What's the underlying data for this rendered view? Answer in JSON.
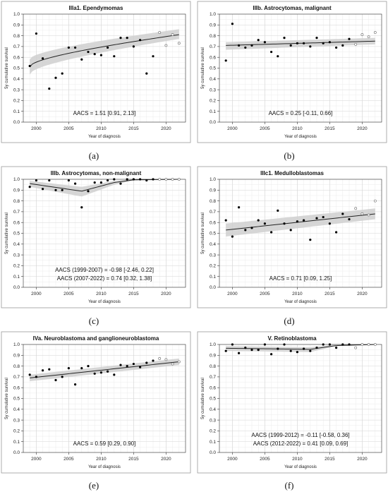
{
  "figure": {
    "panels": [
      {
        "caption": "(a)",
        "title": "IIIa1. Ependymomas",
        "xlabel": "Year of diagnosis",
        "ylabel": "5y cumulative survival",
        "annotations": [
          "AACS = 1.51 [0.91, 2.13]"
        ]
      },
      {
        "caption": "(b)",
        "title": "IIIb. Astrocytomas, malignant",
        "xlabel": "Year of diagnosis",
        "ylabel": "5y cumulative survival",
        "annotations": [
          "AACS = 0.25 [-0.11, 0.66]"
        ]
      },
      {
        "caption": "(c)",
        "title": "IIIb. Astrocytomas, non-malignant",
        "xlabel": "Year of diagnosis",
        "ylabel": "5y cumulative survival",
        "annotations": [
          "AACS (1999-2007) = -0.98 [-2.46, 0.22]",
          "AACS (2007-2022) = 0.74 [0.32, 1.38]"
        ]
      },
      {
        "caption": "(d)",
        "title": "IIIc1. Medulloblastomas",
        "xlabel": "Year of diagnosis",
        "ylabel": "5y cumulative survival",
        "annotations": [
          "AACS = 0.71 [0.09, 1.25]"
        ]
      },
      {
        "caption": "(e)",
        "title": "IVa. Neuroblastoma and ganglioneuroblastoma",
        "xlabel": "Year of diagnosis",
        "ylabel": "5y cumulative survival",
        "annotations": [
          "AACS = 0.59 [0.29, 0.90]"
        ]
      },
      {
        "caption": "(f)",
        "title": "V. Retinoblastoma",
        "xlabel": "Year of diagnosis",
        "ylabel": "5y cumulative survival",
        "annotations": [
          "AACS (1999-2012) = -0.11 [-0.58, 0.36]",
          "AACS (2012-2022) = 0.41 [0.09, 0.69]"
        ]
      }
    ]
  },
  "chart_data": [
    {
      "type": "scatter",
      "title": "IIIa1. Ependymomas",
      "xlabel": "Year of diagnosis",
      "ylabel": "5y cumulative survival",
      "xlim": [
        1998,
        2023
      ],
      "ylim": [
        0,
        1
      ],
      "xticks": [
        2000,
        2005,
        2010,
        2015,
        2020
      ],
      "yticks": [
        0.0,
        0.1,
        0.2,
        0.3,
        0.4,
        0.5,
        0.6,
        0.7,
        0.8,
        0.9,
        1.0
      ],
      "grid": true,
      "series": [
        {
          "marker": "filled",
          "x": [
            1999,
            2000,
            2001,
            2002,
            2003,
            2004,
            2005,
            2006,
            2007,
            2008,
            2009,
            2010,
            2011,
            2012,
            2013,
            2014,
            2015,
            2016,
            2017,
            2018
          ],
          "y": [
            0.52,
            0.82,
            0.59,
            0.31,
            0.41,
            0.45,
            0.69,
            0.69,
            0.58,
            0.65,
            0.63,
            0.62,
            0.69,
            0.61,
            0.78,
            0.78,
            0.7,
            0.76,
            0.45,
            0.61
          ]
        },
        {
          "marker": "open",
          "x": [
            2019,
            2020,
            2021,
            2022
          ],
          "y": [
            0.83,
            0.71,
            0.81,
            0.73
          ]
        }
      ],
      "trend": {
        "x": [
          1999,
          2022
        ],
        "y": [
          0.51,
          0.81
        ],
        "shape": "curved"
      },
      "ci": {
        "lower": [
          0.44,
          0.77
        ],
        "upper": [
          0.58,
          0.86
        ]
      },
      "annotations": [
        "AACS = 1.51 [0.91, 2.13]"
      ]
    },
    {
      "type": "scatter",
      "title": "IIIb. Astrocytomas, malignant",
      "xlabel": "Year of diagnosis",
      "ylabel": "5y cumulative survival",
      "xlim": [
        1998,
        2023
      ],
      "ylim": [
        0,
        1
      ],
      "xticks": [
        2000,
        2005,
        2010,
        2015,
        2020
      ],
      "yticks": [
        0.0,
        0.1,
        0.2,
        0.3,
        0.4,
        0.5,
        0.6,
        0.7,
        0.8,
        0.9,
        1.0
      ],
      "grid": true,
      "series": [
        {
          "marker": "filled",
          "x": [
            1999,
            2000,
            2001,
            2002,
            2003,
            2004,
            2005,
            2006,
            2007,
            2008,
            2009,
            2010,
            2011,
            2012,
            2013,
            2014,
            2015,
            2016,
            2017,
            2018
          ],
          "y": [
            0.57,
            0.91,
            0.71,
            0.69,
            0.71,
            0.76,
            0.74,
            0.65,
            0.61,
            0.78,
            0.71,
            0.73,
            0.73,
            0.7,
            0.78,
            0.73,
            0.74,
            0.69,
            0.71,
            0.77
          ]
        },
        {
          "marker": "open",
          "x": [
            2019,
            2020,
            2021,
            2022
          ],
          "y": [
            0.72,
            0.81,
            0.79,
            0.83
          ]
        }
      ],
      "trend": {
        "x": [
          1999,
          2022
        ],
        "y": [
          0.71,
          0.75
        ]
      },
      "ci": {
        "lower": [
          0.67,
          0.72
        ],
        "upper": [
          0.74,
          0.78
        ]
      },
      "annotations": [
        "AACS = 0.25 [-0.11, 0.66]"
      ]
    },
    {
      "type": "scatter",
      "title": "IIIb. Astrocytomas, non-malignant",
      "xlabel": "Year of diagnosis",
      "ylabel": "5y cumulative survival",
      "xlim": [
        1998,
        2023
      ],
      "ylim": [
        0,
        1
      ],
      "xticks": [
        2000,
        2005,
        2010,
        2015,
        2020
      ],
      "yticks": [
        0.0,
        0.1,
        0.2,
        0.3,
        0.4,
        0.5,
        0.6,
        0.7,
        0.8,
        0.9,
        1.0
      ],
      "grid": true,
      "series": [
        {
          "marker": "filled",
          "x": [
            1999,
            2000,
            2001,
            2002,
            2003,
            2004,
            2005,
            2006,
            2007,
            2008,
            2009,
            2010,
            2011,
            2012,
            2013,
            2014,
            2015,
            2016,
            2017,
            2018
          ],
          "y": [
            0.93,
            0.99,
            0.91,
            0.99,
            0.9,
            0.9,
            0.99,
            0.96,
            0.74,
            0.89,
            0.97,
            0.97,
            0.99,
            1.0,
            0.96,
            1.0,
            1.0,
            1.0,
            0.99,
            1.0
          ]
        },
        {
          "marker": "open",
          "x": [
            2019,
            2020,
            2021,
            2022
          ],
          "y": [
            1.0,
            1.0,
            1.0,
            1.0
          ]
        }
      ],
      "trend": {
        "x": [
          1999,
          2007,
          2012,
          2015,
          2022
        ],
        "y": [
          0.96,
          0.89,
          0.97,
          0.995,
          1.0
        ]
      },
      "ci": {
        "lower": [
          0.93,
          0.84,
          0.95,
          0.99,
          0.995
        ],
        "upper": [
          0.985,
          0.93,
          0.985,
          1.0,
          1.0
        ]
      },
      "annotations": [
        "AACS (1999-2007) = -0.98 [-2.46, 0.22]",
        "AACS (2007-2022) = 0.74 [0.32, 1.38]"
      ]
    },
    {
      "type": "scatter",
      "title": "IIIc1. Medulloblastomas",
      "xlabel": "Year of diagnosis",
      "ylabel": "5y cumulative survival",
      "xlim": [
        1998,
        2023
      ],
      "ylim": [
        0,
        1
      ],
      "xticks": [
        2000,
        2005,
        2010,
        2015,
        2020
      ],
      "yticks": [
        0.0,
        0.1,
        0.2,
        0.3,
        0.4,
        0.5,
        0.6,
        0.7,
        0.8,
        0.9,
        1.0
      ],
      "grid": true,
      "series": [
        {
          "marker": "filled",
          "x": [
            1999,
            2000,
            2001,
            2002,
            2003,
            2004,
            2005,
            2006,
            2007,
            2008,
            2009,
            2010,
            2011,
            2012,
            2013,
            2014,
            2015,
            2016,
            2017,
            2018
          ],
          "y": [
            0.62,
            0.47,
            0.74,
            0.53,
            0.55,
            0.62,
            0.59,
            0.51,
            0.71,
            0.59,
            0.53,
            0.61,
            0.62,
            0.44,
            0.64,
            0.65,
            0.59,
            0.51,
            0.68,
            0.63
          ]
        },
        {
          "marker": "open",
          "x": [
            2019,
            2020,
            2021,
            2022
          ],
          "y": [
            0.73,
            0.68,
            0.67,
            0.8
          ]
        }
      ],
      "trend": {
        "x": [
          1999,
          2022
        ],
        "y": [
          0.53,
          0.68
        ]
      },
      "ci": {
        "lower": [
          0.47,
          0.63
        ],
        "upper": [
          0.59,
          0.73
        ]
      },
      "annotations": [
        "AACS = 0.71 [0.09, 1.25]"
      ]
    },
    {
      "type": "scatter",
      "title": "IVa. Neuroblastoma and ganglioneuroblastoma",
      "xlabel": "Year of diagnosis",
      "ylabel": "5y cumulative survival",
      "xlim": [
        1998,
        2023
      ],
      "ylim": [
        0,
        1
      ],
      "xticks": [
        2000,
        2005,
        2010,
        2015,
        2020
      ],
      "yticks": [
        0.0,
        0.1,
        0.2,
        0.3,
        0.4,
        0.5,
        0.6,
        0.7,
        0.8,
        0.9,
        1.0
      ],
      "grid": true,
      "series": [
        {
          "marker": "filled",
          "x": [
            1999,
            2000,
            2001,
            2002,
            2003,
            2004,
            2005,
            2006,
            2007,
            2008,
            2009,
            2010,
            2011,
            2012,
            2013,
            2014,
            2015,
            2016,
            2017,
            2018
          ],
          "y": [
            0.72,
            0.7,
            0.76,
            0.77,
            0.67,
            0.7,
            0.78,
            0.63,
            0.78,
            0.8,
            0.73,
            0.74,
            0.75,
            0.72,
            0.81,
            0.8,
            0.82,
            0.79,
            0.83,
            0.85
          ]
        },
        {
          "marker": "open",
          "x": [
            2019,
            2020,
            2021,
            2022
          ],
          "y": [
            0.87,
            0.86,
            0.82,
            0.84
          ]
        }
      ],
      "trend": {
        "x": [
          1999,
          2022
        ],
        "y": [
          0.69,
          0.84
        ]
      },
      "ci": {
        "lower": [
          0.66,
          0.81
        ],
        "upper": [
          0.72,
          0.87
        ]
      },
      "annotations": [
        "AACS = 0.59 [0.29, 0.90]"
      ]
    },
    {
      "type": "scatter",
      "title": "V. Retinoblastoma",
      "xlabel": "Year of diagnosis",
      "ylabel": "5y cumulative survival",
      "xlim": [
        1998,
        2023
      ],
      "ylim": [
        0,
        1
      ],
      "xticks": [
        2000,
        2005,
        2010,
        2015,
        2020
      ],
      "yticks": [
        0.0,
        0.1,
        0.2,
        0.3,
        0.4,
        0.5,
        0.6,
        0.7,
        0.8,
        0.9,
        1.0
      ],
      "grid": true,
      "series": [
        {
          "marker": "filled",
          "x": [
            1999,
            2000,
            2001,
            2002,
            2003,
            2004,
            2005,
            2006,
            2007,
            2008,
            2009,
            2010,
            2011,
            2012,
            2013,
            2014,
            2015,
            2016,
            2017,
            2018
          ],
          "y": [
            0.94,
            1.0,
            0.92,
            0.97,
            0.95,
            0.95,
            1.0,
            0.91,
            0.96,
            1.0,
            0.94,
            0.93,
            0.96,
            0.94,
            0.97,
            1.0,
            1.0,
            0.97,
            1.0,
            1.0
          ]
        },
        {
          "marker": "open",
          "x": [
            2019,
            2020,
            2021,
            2022
          ],
          "y": [
            0.97,
            1.0,
            1.0,
            1.0
          ]
        }
      ],
      "trend": {
        "x": [
          1999,
          2012,
          2016,
          2022
        ],
        "y": [
          0.965,
          0.955,
          0.99,
          1.0
        ]
      },
      "ci": {
        "lower": [
          0.94,
          0.93,
          0.985,
          0.995
        ],
        "upper": [
          0.985,
          0.975,
          1.0,
          1.0
        ]
      },
      "annotations": [
        "AACS (1999-2012) = -0.11 [-0.58, 0.36]",
        "AACS (2012-2022) = 0.41 [0.09, 0.69]"
      ]
    }
  ]
}
